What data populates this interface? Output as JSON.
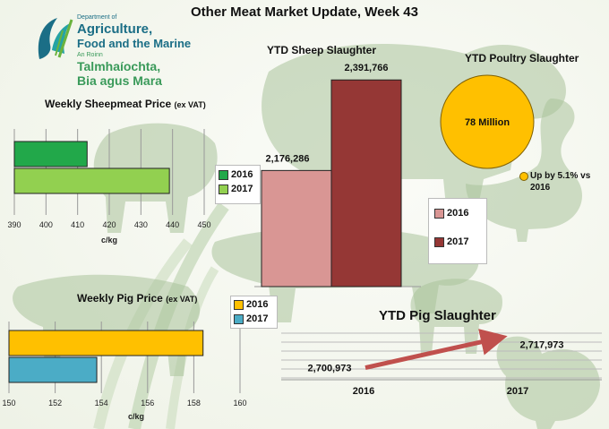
{
  "page_title": "Other Meat Market Update, Week  43",
  "logo": {
    "dept_line1": "Department of",
    "dept_line2": "Agriculture,",
    "dept_line3": "Food and the Marine",
    "irish_small": "An Roinn",
    "irish_line1": "Talmhaíochta,",
    "irish_line2": "Bia agus Mara"
  },
  "colors": {
    "green_2016": "#22a84a",
    "green_2017": "#92d050",
    "sheep_2016": "#d99694",
    "sheep_2017": "#953735",
    "pig_2016": "#ffc000",
    "pig_2017": "#4bacc6",
    "poultry": "#ffc000",
    "arrow": "#c0504d"
  },
  "chart_data": [
    {
      "id": "sheepmeat_price",
      "type": "bar",
      "orientation": "horizontal",
      "title": "Weekly Sheepmeat Price",
      "title_suffix": "(ex VAT)",
      "xlabel": "c/kg",
      "xlim": [
        390,
        450
      ],
      "xticks": [
        "390",
        "400",
        "410",
        "420",
        "430",
        "440",
        "450"
      ],
      "series": [
        {
          "name": "2016",
          "value": 413
        },
        {
          "name": "2017",
          "value": 439
        }
      ],
      "legend": [
        "2016",
        "2017"
      ]
    },
    {
      "id": "ytd_sheep_slaughter",
      "type": "bar",
      "title": "YTD Sheep Slaughter",
      "ylim": [
        1900000,
        2420000
      ],
      "series": [
        {
          "name": "2016",
          "value": 2176286,
          "label": "2,176,286"
        },
        {
          "name": "2017",
          "value": 2391766,
          "label": "2,391,766"
        }
      ],
      "legend": [
        "2016",
        "2017"
      ]
    },
    {
      "id": "ytd_poultry_slaughter",
      "type": "pie",
      "title": "YTD Poultry Slaughter",
      "value_label": "78 Million",
      "annotation": "Up by 5.1% vs 2016"
    },
    {
      "id": "pig_price",
      "type": "bar",
      "orientation": "horizontal",
      "title": "Weekly Pig Price",
      "title_suffix": "(ex VAT)",
      "xlabel": "c/kg",
      "xlim": [
        150,
        160
      ],
      "xticks": [
        "150",
        "152",
        "154",
        "156",
        "158",
        "160"
      ],
      "series": [
        {
          "name": "2016",
          "value": 158.4
        },
        {
          "name": "2017",
          "value": 153.8
        }
      ],
      "legend": [
        "2016",
        "2017"
      ]
    },
    {
      "id": "ytd_pig_slaughter",
      "type": "line",
      "title": "YTD Pig Slaughter",
      "categories": [
        "2016",
        "2017"
      ],
      "values": [
        2700973,
        2717973
      ],
      "labels": [
        "2,700,973",
        "2,717,973"
      ]
    }
  ]
}
